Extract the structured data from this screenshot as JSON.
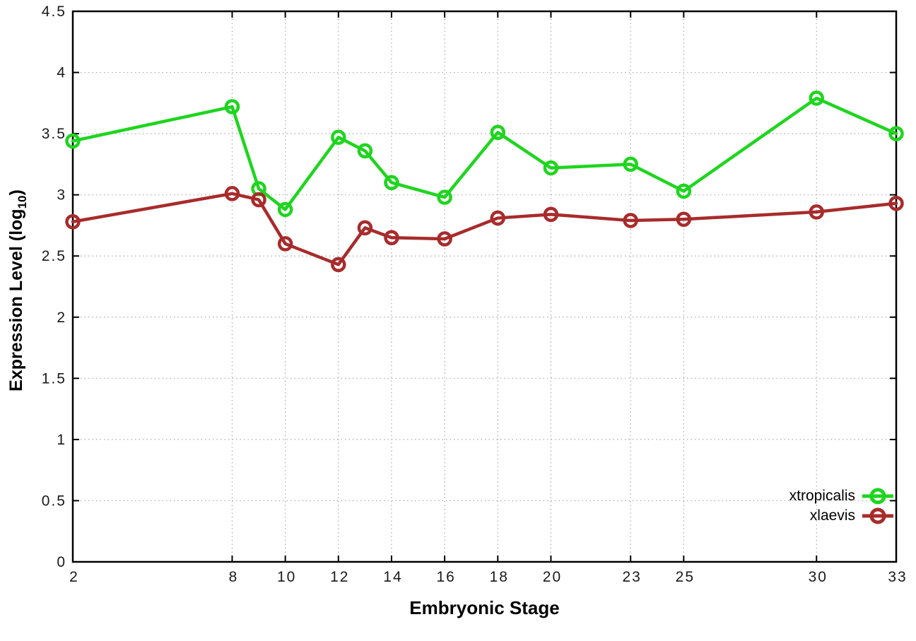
{
  "chart_data": {
    "type": "line",
    "title": "",
    "xlabel": "Embryonic Stage",
    "ylabel": "Expression Level (log10)",
    "ylabel_prefix": "Expression Level (log",
    "ylabel_sub": "10",
    "ylabel_suffix": ")",
    "x": [
      2,
      8,
      9,
      10,
      12,
      13,
      14,
      16,
      18,
      20,
      23,
      25,
      30,
      33
    ],
    "x_tick_values": [
      2,
      8,
      10,
      12,
      14,
      16,
      18,
      20,
      23,
      25,
      30,
      33
    ],
    "x_tick_labels": [
      "2",
      "8",
      "10",
      "12",
      "14",
      "16",
      "18",
      "20",
      "23",
      "25",
      "30",
      "33"
    ],
    "y_tick_values": [
      0,
      0.5,
      1,
      1.5,
      2,
      2.5,
      3,
      3.5,
      4,
      4.5
    ],
    "y_tick_labels": [
      "0",
      "0.5",
      "1",
      "1.5",
      "2",
      "2.5",
      "3",
      "3.5",
      "4",
      "4.5"
    ],
    "xlim": [
      2,
      33
    ],
    "ylim": [
      0,
      4.5
    ],
    "grid": true,
    "legend_position": "bottom-right",
    "series": [
      {
        "name": "xtropicalis",
        "color": "#1ed51e",
        "values": [
          3.44,
          3.72,
          3.05,
          2.88,
          3.47,
          3.36,
          3.1,
          2.98,
          3.51,
          3.22,
          3.25,
          3.03,
          3.79,
          3.5
        ]
      },
      {
        "name": "xlaevis",
        "color": "#a82b2b",
        "values": [
          2.78,
          3.01,
          2.96,
          2.6,
          2.43,
          2.73,
          2.65,
          2.64,
          2.81,
          2.84,
          2.79,
          2.8,
          2.86,
          2.93
        ]
      }
    ],
    "frame_color": "#000000",
    "grid_color": "#a8a8a8"
  }
}
